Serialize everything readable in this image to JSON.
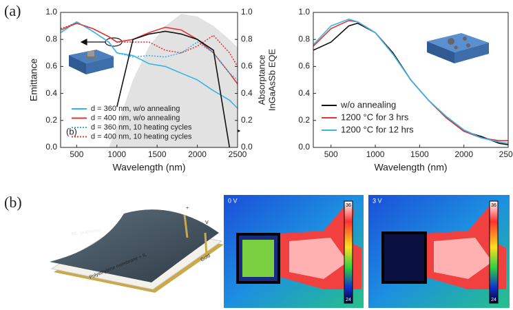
{
  "panel_labels": [
    "(a)",
    "(b)"
  ],
  "chart_data": [
    {
      "type": "line",
      "x_label": "Wavelength (nm)",
      "y_label": "Emittance",
      "y2_label": [
        "Absorptance",
        "InGaAsSb EQE"
      ],
      "annotation": "(b)",
      "xlim": [
        300,
        2500
      ],
      "xticks": [
        500,
        1000,
        1500,
        2000,
        2500
      ],
      "ylim": [
        0,
        1
      ],
      "yticks": [
        {
          "value": 0,
          "label": "0.0"
        },
        {
          "value": 0.2,
          "label": "0.2"
        },
        {
          "value": 0.4,
          "label": "0.4"
        },
        {
          "value": 0.6,
          "label": "0.6"
        },
        {
          "value": 0.8,
          "label": "0.8"
        },
        {
          "value": 1,
          "label": "1.0"
        }
      ],
      "y2lim": [
        0,
        1
      ],
      "y2ticks": [
        {
          "value": 0,
          "label": "0.0"
        },
        {
          "value": 0.2,
          "label": "0.2"
        },
        {
          "value": 0.4,
          "label": "0.4"
        },
        {
          "value": 0.6,
          "label": "0.6"
        },
        {
          "value": 0.8,
          "label": "0.8"
        },
        {
          "value": 1,
          "label": "1.0"
        }
      ],
      "x": [
        300,
        500,
        700,
        900,
        1000,
        1200,
        1400,
        1600,
        1800,
        2000,
        2200,
        2400,
        2500
      ],
      "series": [
        {
          "color": "#e2e2e2",
          "style": "area",
          "axis": "y2",
          "values": [
            0,
            0,
            0,
            0,
            0.15,
            0.5,
            0.75,
            0.9,
            0.99,
            0.97,
            0.9,
            0.8,
            0.74
          ]
        },
        {
          "name": "d = 360 nm, w/o annealing",
          "color": "#35b6e6",
          "style": "solid",
          "values": [
            0.85,
            0.93,
            0.86,
            0.78,
            0.7,
            0.68,
            0.62,
            0.6,
            0.55,
            0.5,
            0.42,
            0.35,
            0.29
          ]
        },
        {
          "name": "d = 400 nm, w/o annealing",
          "color": "#e03434",
          "style": "solid",
          "values": [
            0.87,
            0.92,
            0.88,
            0.82,
            0.78,
            0.8,
            0.85,
            0.89,
            0.87,
            0.8,
            0.7,
            0.55,
            0.47
          ]
        },
        {
          "name": "d = 360 nm, 10 heating cycles",
          "color": "#35b6e6",
          "style": "dotted",
          "values": [
            0.87,
            0.93,
            0.86,
            0.78,
            0.7,
            0.67,
            0.68,
            0.67,
            0.7,
            0.78,
            0.7,
            0.55,
            0.5
          ]
        },
        {
          "name": "d = 400 nm, 10 heating cycles",
          "color": "#e03434",
          "style": "dotted",
          "values": [
            0.88,
            0.92,
            0.88,
            0.82,
            0.78,
            0.78,
            0.78,
            0.72,
            0.7,
            0.75,
            0.83,
            0.7,
            0.6
          ]
        },
        {
          "color": "#111111",
          "style": "solid",
          "axis": "y2",
          "values": [
            null,
            null,
            null,
            null,
            0.3,
            0.8,
            0.84,
            0.86,
            0.84,
            0.8,
            0.72,
            0,
            null
          ]
        }
      ]
    },
    {
      "type": "line",
      "x_label": "Wavelength (nm)",
      "xlim": [
        300,
        2500
      ],
      "xticks": [
        500,
        1000,
        1500,
        2000,
        2500
      ],
      "ylim": [
        0,
        1
      ],
      "yticks": [
        {
          "value": 0,
          "label": "0.0"
        },
        {
          "value": 0.2,
          "label": "0.2"
        },
        {
          "value": 0.4,
          "label": "0.4"
        },
        {
          "value": 0.6,
          "label": "0.6"
        },
        {
          "value": 0.8,
          "label": "0.8"
        },
        {
          "value": 1,
          "label": "1.0"
        }
      ],
      "x": [
        300,
        500,
        700,
        800,
        1000,
        1200,
        1400,
        1600,
        1800,
        2000,
        2200,
        2400,
        2500
      ],
      "series": [
        {
          "name": "w/o annealing",
          "color": "#111111",
          "style": "solid",
          "values": [
            0.72,
            0.78,
            0.9,
            0.92,
            0.85,
            0.7,
            0.5,
            0.35,
            0.22,
            0.12,
            0.08,
            0.03,
            0.02
          ]
        },
        {
          "name": "1200 °C for 3 hrs",
          "color": "#e03434",
          "style": "solid",
          "values": [
            0.75,
            0.88,
            0.94,
            0.93,
            0.85,
            0.69,
            0.5,
            0.35,
            0.22,
            0.12,
            0.07,
            0.05,
            0.05
          ]
        },
        {
          "name": "1200 °C for 12 hrs",
          "color": "#35b6e6",
          "style": "solid",
          "values": [
            0.76,
            0.9,
            0.95,
            0.93,
            0.85,
            0.69,
            0.5,
            0.35,
            0.23,
            0.13,
            0.07,
            0.04,
            0.03
          ]
        }
      ]
    }
  ],
  "diagram": {
    "graphene": "ML-graphene",
    "membrane": "Polyethylene membrane + IL",
    "gold": "Gold",
    "plus": "+",
    "minus": "-",
    "voltage": "V"
  },
  "thermal_images": [
    {
      "label": "0 V",
      "scale_max": 36,
      "scale_min": 24
    },
    {
      "label": "3 V",
      "scale_max": 36,
      "scale_min": 24
    }
  ]
}
